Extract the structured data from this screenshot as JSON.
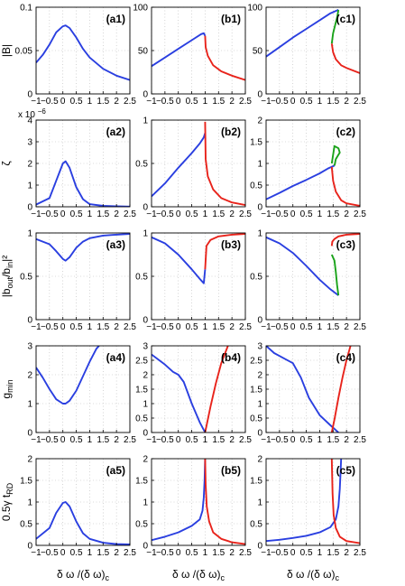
{
  "colors": {
    "blue": "#2a3fe0",
    "red": "#e8231b",
    "green": "#1aa31a"
  },
  "xlabel_main": "δ ω /(δ ω)",
  "xlabel_sub": "c",
  "ylabels": [
    {
      "main": "|B|",
      "sub": ""
    },
    {
      "main": "ζ",
      "sub": ""
    },
    {
      "main": "|b",
      "sub": "out",
      "mid": "/b",
      "sub2": "in",
      "tail": "|²"
    },
    {
      "main": "g",
      "sub": "min"
    },
    {
      "main": "0.5γ t",
      "sub": "RD"
    }
  ],
  "chart_data": [
    {
      "panel": "(a1)",
      "type": "line",
      "xlim": [
        -1,
        2.5
      ],
      "ylim": [
        0,
        0.1
      ],
      "yticks": [
        "0",
        "0.05",
        "0.1"
      ],
      "series": [
        {
          "color": "blue",
          "x": [
            -1,
            -0.75,
            -0.5,
            -0.25,
            0,
            0.1,
            0.25,
            0.5,
            0.75,
            1,
            1.5,
            2,
            2.5
          ],
          "y": [
            0.036,
            0.045,
            0.057,
            0.071,
            0.078,
            0.079,
            0.076,
            0.065,
            0.052,
            0.042,
            0.029,
            0.021,
            0.016
          ]
        }
      ]
    },
    {
      "panel": "(b1)",
      "type": "line",
      "xlim": [
        -1,
        2.5
      ],
      "ylim": [
        0,
        100
      ],
      "yticks": [
        "0",
        "50",
        "100"
      ],
      "series": [
        {
          "color": "blue",
          "x": [
            -1,
            -0.5,
            0,
            0.5,
            0.85,
            0.95,
            1.0
          ],
          "y": [
            32,
            42,
            52,
            62,
            69,
            70,
            67
          ]
        },
        {
          "color": "red",
          "x": [
            1.0,
            1.02,
            1.1,
            1.3,
            1.6,
            2.0,
            2.5
          ],
          "y": [
            67,
            54,
            44,
            33,
            26,
            21,
            16
          ]
        }
      ]
    },
    {
      "panel": "(c1)",
      "type": "line",
      "xlim": [
        -1,
        2.5
      ],
      "ylim": [
        0,
        100
      ],
      "yticks": [
        "0",
        "50",
        "100"
      ],
      "series": [
        {
          "color": "blue",
          "x": [
            -1,
            -0.5,
            0,
            0.5,
            1.0,
            1.4,
            1.7
          ],
          "y": [
            43,
            54,
            65,
            75,
            85,
            93,
            97
          ]
        },
        {
          "color": "green",
          "x": [
            1.7,
            1.65,
            1.58,
            1.5,
            1.45
          ],
          "y": [
            97,
            88,
            80,
            70,
            58
          ]
        },
        {
          "color": "red",
          "x": [
            1.45,
            1.5,
            1.6,
            1.8,
            2.0,
            2.5
          ],
          "y": [
            58,
            48,
            40,
            33,
            30,
            24
          ]
        }
      ]
    },
    {
      "panel": "(a2)",
      "type": "line",
      "xlim": [
        -1,
        2.5
      ],
      "ylim": [
        0,
        4
      ],
      "yticks": [
        "0",
        "1",
        "2",
        "3",
        "4"
      ],
      "multiplier": "x 10",
      "multiplier_exp": "−6",
      "series": [
        {
          "color": "blue",
          "x": [
            -1,
            -0.5,
            -0.25,
            0,
            0.1,
            0.25,
            0.5,
            0.75,
            1,
            1.5,
            2,
            2.5
          ],
          "y": [
            0.1,
            0.4,
            1.2,
            2.0,
            2.1,
            1.8,
            0.9,
            0.35,
            0.12,
            0.04,
            0.02,
            0.01
          ]
        }
      ]
    },
    {
      "panel": "(b2)",
      "type": "line",
      "xlim": [
        -1,
        2.5
      ],
      "ylim": [
        0,
        1
      ],
      "yticks": [
        "0",
        "0.5",
        "1"
      ],
      "series": [
        {
          "color": "blue",
          "x": [
            -1,
            -0.5,
            0,
            0.5,
            0.8,
            0.95,
            1.0
          ],
          "y": [
            0.12,
            0.27,
            0.45,
            0.62,
            0.73,
            0.8,
            0.85
          ]
        },
        {
          "color": "red",
          "x": [
            1.0,
            1.02,
            1.1,
            1.3,
            1.6,
            2.0,
            2.5
          ],
          "y": [
            0.98,
            0.55,
            0.35,
            0.2,
            0.1,
            0.05,
            0.02
          ]
        }
      ]
    },
    {
      "panel": "(c2)",
      "type": "line",
      "xlim": [
        -1,
        2.5
      ],
      "ylim": [
        0,
        2
      ],
      "yticks": [
        "0",
        "0.5",
        "1",
        "1.5",
        "2"
      ],
      "series": [
        {
          "color": "blue",
          "x": [
            -1,
            -0.5,
            0,
            0.5,
            1.0,
            1.3,
            1.55
          ],
          "y": [
            0.17,
            0.32,
            0.48,
            0.62,
            0.77,
            0.88,
            0.95
          ]
        },
        {
          "color": "green",
          "x": [
            1.55,
            1.6,
            1.7,
            1.75,
            1.7,
            1.55,
            1.45
          ],
          "y": [
            0.95,
            1.1,
            1.2,
            1.25,
            1.35,
            1.4,
            1.0
          ]
        },
        {
          "color": "red",
          "x": [
            1.45,
            1.5,
            1.6,
            1.8,
            2.0,
            2.5
          ],
          "y": [
            0.92,
            0.6,
            0.35,
            0.15,
            0.08,
            0.02
          ]
        }
      ]
    },
    {
      "panel": "(a3)",
      "type": "line",
      "xlim": [
        -1,
        2.5
      ],
      "ylim": [
        0,
        1
      ],
      "yticks": [
        "0",
        "0.5",
        "1"
      ],
      "series": [
        {
          "color": "blue",
          "x": [
            -1,
            -0.5,
            -0.25,
            0,
            0.1,
            0.25,
            0.5,
            0.75,
            1,
            1.5,
            2,
            2.5
          ],
          "y": [
            0.93,
            0.87,
            0.79,
            0.7,
            0.68,
            0.72,
            0.83,
            0.9,
            0.94,
            0.97,
            0.98,
            0.99
          ]
        }
      ]
    },
    {
      "panel": "(b3)",
      "type": "line",
      "xlim": [
        -1,
        2.5
      ],
      "ylim": [
        0,
        1
      ],
      "yticks": [
        "0",
        "0.5",
        "1"
      ],
      "series": [
        {
          "color": "blue",
          "x": [
            -1,
            -0.5,
            0,
            0.5,
            0.8,
            0.95,
            1.0
          ],
          "y": [
            0.95,
            0.88,
            0.75,
            0.58,
            0.47,
            0.42,
            0.58
          ]
        },
        {
          "color": "red",
          "x": [
            1.0,
            1.05,
            1.2,
            1.5,
            2.0,
            2.5
          ],
          "y": [
            0.58,
            0.85,
            0.92,
            0.96,
            0.98,
            0.99
          ]
        }
      ]
    },
    {
      "panel": "(c3)",
      "type": "line",
      "xlim": [
        -1,
        2.5
      ],
      "ylim": [
        0,
        1
      ],
      "yticks": [
        "0",
        "0.5",
        "1"
      ],
      "series": [
        {
          "color": "blue",
          "x": [
            -1,
            -0.5,
            0,
            0.5,
            1.0,
            1.4,
            1.7
          ],
          "y": [
            0.95,
            0.88,
            0.77,
            0.62,
            0.46,
            0.35,
            0.28
          ]
        },
        {
          "color": "green",
          "x": [
            1.7,
            1.65,
            1.6,
            1.55,
            1.45
          ],
          "y": [
            0.28,
            0.4,
            0.55,
            0.68,
            0.75
          ]
        },
        {
          "color": "red",
          "x": [
            1.45,
            1.47,
            1.55,
            1.7,
            2.0,
            2.5
          ],
          "y": [
            0.85,
            0.9,
            0.93,
            0.96,
            0.98,
            0.99
          ]
        }
      ]
    },
    {
      "panel": "(a4)",
      "type": "line",
      "xlim": [
        -1,
        2.5
      ],
      "ylim": [
        0,
        3
      ],
      "yticks": [
        "0",
        "1",
        "2",
        "3"
      ],
      "series": [
        {
          "color": "blue",
          "x": [
            -1,
            -0.75,
            -0.5,
            -0.25,
            0,
            0.1,
            0.25,
            0.5,
            0.75,
            1,
            1.25,
            1.35
          ],
          "y": [
            2.25,
            1.9,
            1.5,
            1.15,
            1.0,
            1.0,
            1.1,
            1.45,
            1.95,
            2.45,
            2.9,
            3.0
          ]
        }
      ]
    },
    {
      "panel": "(b4)",
      "type": "line",
      "xlim": [
        -1,
        2.5
      ],
      "ylim": [
        0,
        3
      ],
      "yticks": [
        "0",
        "0.5",
        "1",
        "1.5",
        "2",
        "2.5",
        "3"
      ],
      "series": [
        {
          "color": "blue",
          "x": [
            -1,
            -0.5,
            -0.2,
            0,
            0.2,
            0.5,
            0.8,
            1.0
          ],
          "y": [
            2.7,
            2.35,
            2.1,
            2.0,
            1.75,
            1.0,
            0.35,
            0.0
          ]
        },
        {
          "color": "red",
          "x": [
            1.0,
            1.2,
            1.4,
            1.6,
            1.85
          ],
          "y": [
            0.0,
            0.9,
            1.7,
            2.4,
            3.0
          ]
        }
      ]
    },
    {
      "panel": "(c4)",
      "type": "line",
      "xlim": [
        -1,
        2.5
      ],
      "ylim": [
        0,
        3
      ],
      "yticks": [
        "0",
        "0.5",
        "1",
        "1.5",
        "2",
        "2.5",
        "3"
      ],
      "series": [
        {
          "color": "blue",
          "x": [
            -1,
            -0.7,
            -0.3,
            0,
            0.3,
            0.6,
            1.0,
            1.4,
            1.7
          ],
          "y": [
            3.0,
            2.75,
            2.55,
            2.4,
            1.9,
            1.2,
            0.6,
            0.25,
            0.0
          ]
        },
        {
          "color": "red",
          "x": [
            1.45,
            1.55,
            1.7,
            1.85,
            2.0,
            2.15
          ],
          "y": [
            0.0,
            0.45,
            1.2,
            1.9,
            2.5,
            3.0
          ]
        }
      ]
    },
    {
      "panel": "(a5)",
      "type": "line",
      "xlim": [
        -1,
        2.5
      ],
      "ylim": [
        0,
        2
      ],
      "yticks": [
        "0",
        "0.5",
        "1",
        "1.5",
        "2"
      ],
      "series": [
        {
          "color": "blue",
          "x": [
            -1,
            -0.5,
            -0.25,
            0,
            0.1,
            0.25,
            0.5,
            0.75,
            1,
            1.5,
            2,
            2.5
          ],
          "y": [
            0.15,
            0.4,
            0.75,
            0.98,
            1.0,
            0.9,
            0.55,
            0.28,
            0.15,
            0.06,
            0.03,
            0.02
          ]
        }
      ]
    },
    {
      "panel": "(b5)",
      "type": "line",
      "xlim": [
        -1,
        2.5
      ],
      "ylim": [
        0,
        2
      ],
      "yticks": [
        "0",
        "0.5",
        "1",
        "1.5",
        "2"
      ],
      "series": [
        {
          "color": "blue",
          "x": [
            -1,
            -0.5,
            0,
            0.5,
            0.8,
            0.9,
            0.95,
            0.98,
            1.0
          ],
          "y": [
            0.12,
            0.2,
            0.3,
            0.45,
            0.6,
            0.8,
            1.1,
            1.5,
            2.0
          ]
        },
        {
          "color": "red",
          "x": [
            1.0,
            1.02,
            1.06,
            1.15,
            1.3,
            1.6,
            2.0,
            2.5
          ],
          "y": [
            2.0,
            1.4,
            0.9,
            0.55,
            0.3,
            0.15,
            0.07,
            0.03
          ]
        }
      ]
    },
    {
      "panel": "(c5)",
      "type": "line",
      "xlim": [
        -1,
        2.5
      ],
      "ylim": [
        0,
        2
      ],
      "yticks": [
        "0",
        "0.5",
        "1",
        "1.5",
        "2"
      ],
      "series": [
        {
          "color": "blue",
          "x": [
            -1,
            -0.5,
            0,
            0.5,
            1.0,
            1.4,
            1.6,
            1.7,
            1.75,
            1.78,
            1.8
          ],
          "y": [
            0.1,
            0.13,
            0.17,
            0.22,
            0.3,
            0.42,
            0.6,
            0.9,
            1.3,
            1.7,
            2.0
          ]
        },
        {
          "color": "red",
          "x": [
            1.45,
            1.48,
            1.52,
            1.6,
            1.75,
            2.0,
            2.5
          ],
          "y": [
            2.0,
            1.2,
            0.7,
            0.4,
            0.2,
            0.1,
            0.05
          ]
        }
      ]
    }
  ]
}
